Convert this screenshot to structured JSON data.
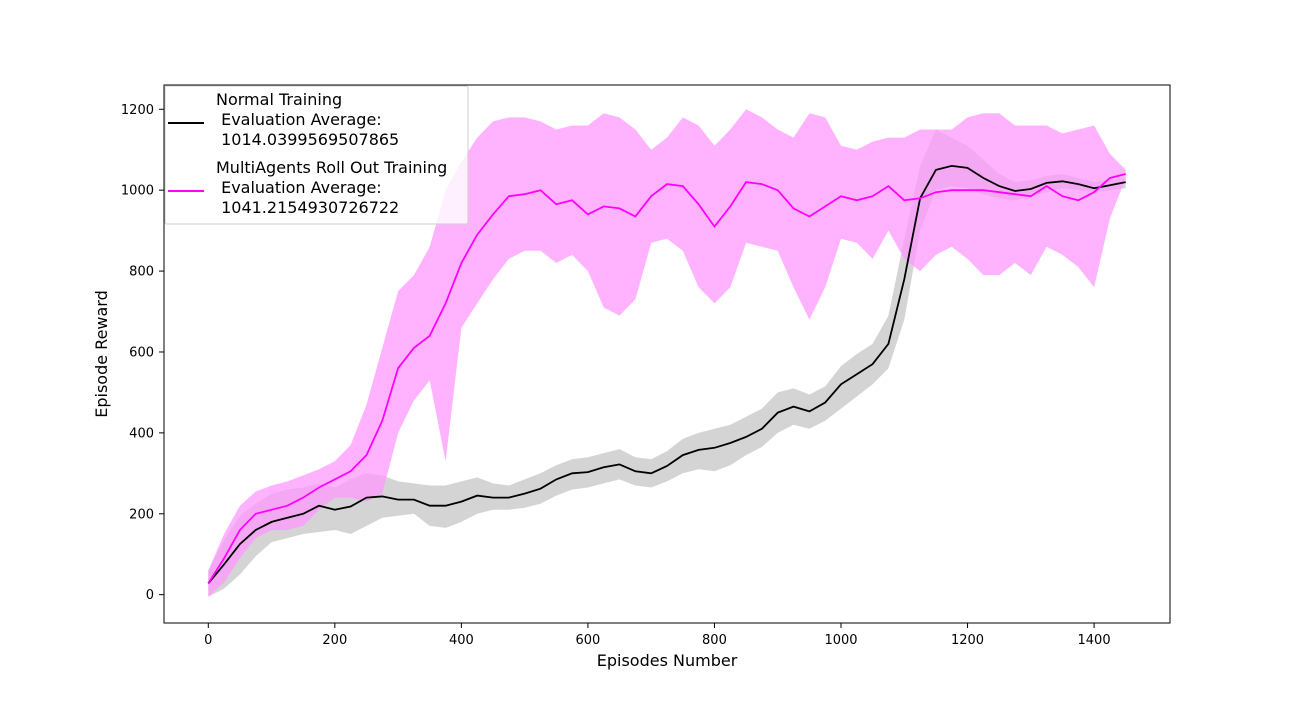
{
  "chart_data": {
    "type": "line",
    "title": "",
    "xlabel": "Episodes Number",
    "ylabel": "Episode Reward",
    "xlim": [
      -70,
      1520
    ],
    "ylim": [
      -70,
      1260
    ],
    "xticks": [
      0,
      200,
      400,
      600,
      800,
      1000,
      1200,
      1400
    ],
    "yticks": [
      0,
      200,
      400,
      600,
      800,
      1000,
      1200
    ],
    "grid": false,
    "legend_placement": "top-left",
    "series": [
      {
        "name": "Normal Training\n Evaluation Average:\n 1014.0399569507865",
        "color": "#000000",
        "band_color": "#bdbdbd",
        "x": [
          0,
          25,
          50,
          75,
          100,
          125,
          150,
          175,
          200,
          225,
          250,
          275,
          300,
          325,
          350,
          375,
          400,
          425,
          450,
          475,
          500,
          525,
          550,
          575,
          600,
          625,
          650,
          675,
          700,
          725,
          750,
          775,
          800,
          825,
          850,
          875,
          900,
          925,
          950,
          975,
          1000,
          1025,
          1050,
          1075,
          1100,
          1125,
          1150,
          1175,
          1200,
          1225,
          1250,
          1275,
          1300,
          1325,
          1350,
          1375,
          1400,
          1425,
          1450
        ],
        "mean": [
          28,
          75,
          125,
          160,
          180,
          190,
          200,
          220,
          210,
          218,
          240,
          243,
          235,
          235,
          220,
          220,
          230,
          245,
          240,
          240,
          250,
          262,
          285,
          300,
          303,
          315,
          322,
          305,
          300,
          318,
          345,
          358,
          363,
          375,
          390,
          410,
          450,
          465,
          453,
          475,
          520,
          545,
          570,
          620,
          780,
          980,
          1050,
          1060,
          1055,
          1030,
          1010,
          998,
          1003,
          1018,
          1022,
          1015,
          1005,
          1012,
          1020
        ],
        "lower": [
          -5,
          15,
          50,
          95,
          130,
          140,
          150,
          155,
          160,
          150,
          170,
          190,
          195,
          200,
          170,
          165,
          180,
          200,
          210,
          210,
          215,
          225,
          245,
          260,
          265,
          275,
          285,
          270,
          265,
          280,
          300,
          310,
          305,
          320,
          345,
          365,
          400,
          420,
          410,
          430,
          460,
          490,
          520,
          560,
          680,
          900,
          1000,
          1010,
          1005,
          990,
          980,
          975,
          985,
          995,
          1005,
          1000,
          995,
          1000,
          1005
        ],
        "upper": [
          60,
          135,
          195,
          225,
          250,
          260,
          265,
          275,
          265,
          285,
          300,
          295,
          280,
          275,
          270,
          270,
          280,
          290,
          275,
          270,
          285,
          300,
          320,
          335,
          340,
          350,
          360,
          340,
          335,
          355,
          385,
          400,
          410,
          420,
          440,
          460,
          500,
          510,
          495,
          515,
          565,
          595,
          620,
          690,
          880,
          1060,
          1150,
          1130,
          1110,
          1075,
          1040,
          1020,
          1025,
          1035,
          1040,
          1030,
          1020,
          1025,
          1030
        ]
      },
      {
        "name": "MultiAgents Roll Out Training\n Evaluation Average:\n 1041.2154930726722",
        "color": "#ff00ff",
        "band_color": "#ff99ff",
        "x": [
          0,
          25,
          50,
          75,
          100,
          125,
          150,
          175,
          200,
          225,
          250,
          275,
          300,
          325,
          350,
          375,
          400,
          425,
          450,
          475,
          500,
          525,
          550,
          575,
          600,
          625,
          650,
          675,
          700,
          725,
          750,
          775,
          800,
          825,
          850,
          875,
          900,
          925,
          950,
          975,
          1000,
          1025,
          1050,
          1075,
          1100,
          1125,
          1150,
          1175,
          1200,
          1225,
          1250,
          1275,
          1300,
          1325,
          1350,
          1375,
          1400,
          1425,
          1450
        ],
        "mean": [
          28,
          90,
          160,
          200,
          210,
          220,
          240,
          265,
          285,
          305,
          345,
          430,
          560,
          610,
          640,
          720,
          820,
          890,
          940,
          985,
          990,
          1000,
          965,
          975,
          940,
          960,
          955,
          935,
          985,
          1015,
          1010,
          965,
          910,
          960,
          1020,
          1015,
          1000,
          955,
          935,
          960,
          985,
          975,
          985,
          1010,
          975,
          980,
          995,
          1000,
          1000,
          1000,
          995,
          990,
          985,
          1010,
          985,
          975,
          995,
          1030,
          1040
        ],
        "lower": [
          -5,
          30,
          90,
          140,
          160,
          160,
          170,
          210,
          240,
          240,
          230,
          250,
          400,
          480,
          530,
          330,
          660,
          720,
          780,
          830,
          850,
          850,
          820,
          840,
          800,
          710,
          690,
          730,
          870,
          880,
          850,
          760,
          720,
          760,
          870,
          860,
          850,
          760,
          680,
          760,
          880,
          870,
          830,
          900,
          830,
          800,
          840,
          860,
          830,
          790,
          790,
          820,
          790,
          860,
          840,
          810,
          760,
          930,
          1030
        ],
        "upper": [
          60,
          150,
          220,
          255,
          270,
          280,
          295,
          310,
          330,
          370,
          470,
          610,
          750,
          790,
          860,
          1000,
          1070,
          1130,
          1170,
          1180,
          1180,
          1170,
          1150,
          1160,
          1160,
          1190,
          1180,
          1150,
          1100,
          1130,
          1180,
          1160,
          1110,
          1150,
          1200,
          1180,
          1150,
          1130,
          1190,
          1180,
          1110,
          1100,
          1120,
          1130,
          1130,
          1150,
          1150,
          1150,
          1180,
          1190,
          1190,
          1160,
          1160,
          1160,
          1140,
          1150,
          1160,
          1090,
          1050
        ]
      }
    ]
  }
}
